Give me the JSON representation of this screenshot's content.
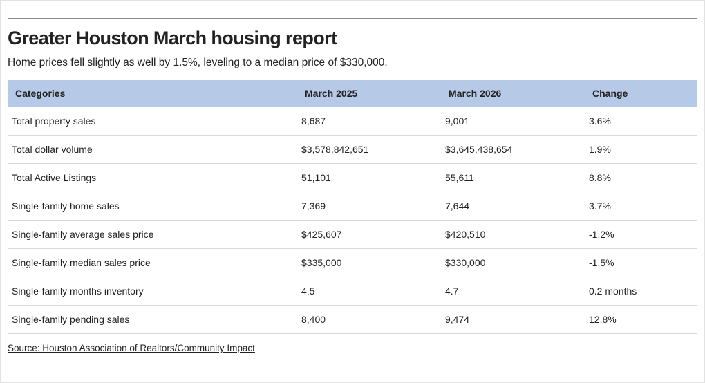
{
  "report": {
    "title": "Greater Houston March housing report",
    "subtitle": "Home prices fell slightly as well by 1.5%, leveling to a median price of $330,000.",
    "source": "Source: Houston Association of Realtors/Community Impact"
  },
  "table": {
    "headers": [
      "Categories",
      "March 2025",
      "March 2026",
      "Change"
    ],
    "rows": [
      [
        "Total property sales",
        "8,687",
        "9,001",
        "3.6%"
      ],
      [
        "Total dollar volume",
        "$3,578,842,651",
        "$3,645,438,654",
        "1.9%"
      ],
      [
        "Total Active Listings",
        "51,101",
        "55,611",
        "8.8%"
      ],
      [
        "Single-family home sales",
        "7,369",
        "7,644",
        "3.7%"
      ],
      [
        "Single-family average sales price",
        "$425,607",
        "$420,510",
        "-1.2%"
      ],
      [
        "Single-family median sales price",
        "$335,000",
        "$330,000",
        "-1.5%"
      ],
      [
        "Single-family months inventory",
        "4.5",
        "4.7",
        "0.2 months"
      ],
      [
        "Single-family pending sales",
        "8,400",
        "9,474",
        "12.8%"
      ]
    ]
  }
}
